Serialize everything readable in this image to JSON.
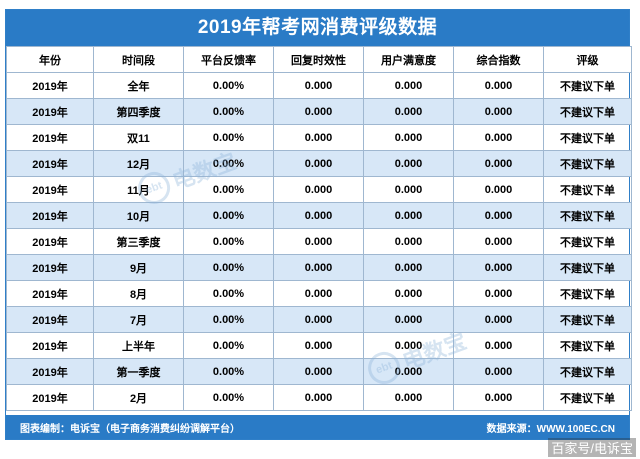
{
  "title": "2019年帮考网消费评级数据",
  "headers": [
    "年份",
    "时间段",
    "平台反馈率",
    "回复时效性",
    "用户满意度",
    "综合指数",
    "评级"
  ],
  "rows": [
    [
      "2019年",
      "全年",
      "0.00%",
      "0.000",
      "0.000",
      "0.000",
      "不建议下单"
    ],
    [
      "2019年",
      "第四季度",
      "0.00%",
      "0.000",
      "0.000",
      "0.000",
      "不建议下单"
    ],
    [
      "2019年",
      "双11",
      "0.00%",
      "0.000",
      "0.000",
      "0.000",
      "不建议下单"
    ],
    [
      "2019年",
      "12月",
      "0.00%",
      "0.000",
      "0.000",
      "0.000",
      "不建议下单"
    ],
    [
      "2019年",
      "11月",
      "0.00%",
      "0.000",
      "0.000",
      "0.000",
      "不建议下单"
    ],
    [
      "2019年",
      "10月",
      "0.00%",
      "0.000",
      "0.000",
      "0.000",
      "不建议下单"
    ],
    [
      "2019年",
      "第三季度",
      "0.00%",
      "0.000",
      "0.000",
      "0.000",
      "不建议下单"
    ],
    [
      "2019年",
      "9月",
      "0.00%",
      "0.000",
      "0.000",
      "0.000",
      "不建议下单"
    ],
    [
      "2019年",
      "8月",
      "0.00%",
      "0.000",
      "0.000",
      "0.000",
      "不建议下单"
    ],
    [
      "2019年",
      "7月",
      "0.00%",
      "0.000",
      "0.000",
      "0.000",
      "不建议下单"
    ],
    [
      "2019年",
      "上半年",
      "0.00%",
      "0.000",
      "0.000",
      "0.000",
      "不建议下单"
    ],
    [
      "2019年",
      "第一季度",
      "0.00%",
      "0.000",
      "0.000",
      "0.000",
      "不建议下单"
    ],
    [
      "2019年",
      "2月",
      "0.00%",
      "0.000",
      "0.000",
      "0.000",
      "不建议下单"
    ]
  ],
  "footer": {
    "left": "图表编制：电诉宝（电子商务消费纠纷调解平台）",
    "right": "数据来源：WWW.100EC.CN"
  },
  "watermark": {
    "logo": "ebt",
    "text": "电数宝"
  },
  "corner_mark": "百家号/电诉宝",
  "colors": {
    "header_bg": "#2a7bc6",
    "alt_row": "#d7e7f7",
    "border": "#9fb7d0"
  }
}
